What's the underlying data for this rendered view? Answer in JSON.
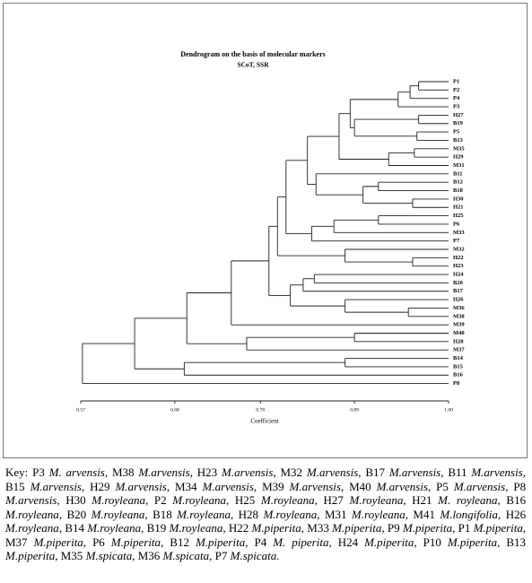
{
  "figure": {
    "title": "Dendrogram on the basis of molecular markers",
    "subtitle": "SCoT, SSR",
    "x_label": "Coefficient",
    "xlim": [
      0.57,
      1
    ],
    "xticks": [
      0.57,
      0.68,
      0.78,
      0.89,
      {
        "value": 1,
        "label": "1.00"
      }
    ],
    "tree": {
      "height": 0.572,
      "children": [
        {
          "height": 0.633,
          "children": [
            {
              "height": 0.694,
              "children": [
                {
                  "height": 0.746,
                  "children": [
                    {
                      "height": 0.79,
                      "children": [
                        {
                          "height": 0.8,
                          "children": [
                            {
                              "height": 0.81,
                              "children": [
                                {
                                  "height": 0.835,
                                  "children": [
                                    {
                                      "height": 0.872,
                                      "children": [
                                        {
                                          "height": 0.885,
                                          "children": [
                                            {
                                              "height": 0.941,
                                              "children": [
                                                {
                                                  "height": 0.955,
                                                  "children": [
                                                    {
                                                      "height": 0.965,
                                                      "children": [
                                                        {
                                                          "label": "P1"
                                                        },
                                                        {
                                                          "label": "P2"
                                                        }
                                                      ]
                                                    },
                                                    {
                                                      "label": "P4"
                                                    }
                                                  ]
                                                },
                                                {
                                                  "label": "P3"
                                                }
                                              ]
                                            },
                                            {
                                              "height": 0.89,
                                              "children": [
                                                {
                                                  "height": 0.965,
                                                  "children": [
                                                    {
                                                      "label": "H27"
                                                    },
                                                    {
                                                      "label": "B19"
                                                    }
                                                  ]
                                                },
                                                {
                                                  "height": 0.963,
                                                  "children": [
                                                    {
                                                      "label": "P5"
                                                    },
                                                    {
                                                      "label": "B13"
                                                    }
                                                  ]
                                                }
                                              ]
                                            }
                                          ]
                                        },
                                        {
                                          "height": 0.93,
                                          "children": [
                                            {
                                              "height": 0.96,
                                              "children": [
                                                {
                                                  "label": "M35"
                                                },
                                                {
                                                  "label": "H29"
                                                }
                                              ]
                                            },
                                            {
                                              "label": "M31"
                                            }
                                          ]
                                        }
                                      ]
                                    },
                                    {
                                      "height": 0.845,
                                      "children": [
                                        {
                                          "label": "B11"
                                        },
                                        {
                                          "height": 0.9,
                                          "children": [
                                            {
                                              "height": 0.918,
                                              "children": [
                                                {
                                                  "label": "B12"
                                                },
                                                {
                                                  "label": "B18"
                                                }
                                              ]
                                            },
                                            {
                                              "height": 0.958,
                                              "children": [
                                                {
                                                  "label": "H30"
                                                },
                                                {
                                                  "label": "H21"
                                                }
                                              ]
                                            }
                                          ]
                                        }
                                      ]
                                    }
                                  ]
                                },
                                {
                                  "height": 0.84,
                                  "children": [
                                    {
                                      "height": 0.866,
                                      "children": [
                                        {
                                          "height": 0.918,
                                          "children": [
                                            {
                                              "label": "H25"
                                            },
                                            {
                                              "label": "P6"
                                            }
                                          ]
                                        },
                                        {
                                          "label": "M33"
                                        }
                                      ]
                                    },
                                    {
                                      "label": "P7"
                                    }
                                  ]
                                }
                              ]
                            },
                            {
                              "height": 0.879,
                              "children": [
                                {
                                  "label": "M32"
                                },
                                {
                                  "height": 0.958,
                                  "children": [
                                    {
                                      "label": "H22"
                                    },
                                    {
                                      "label": "H23"
                                    }
                                  ]
                                }
                              ]
                            }
                          ]
                        },
                        {
                          "height": 0.815,
                          "children": [
                            {
                              "height": 0.83,
                              "children": [
                                {
                                  "height": 0.843,
                                  "children": [
                                    {
                                      "label": "H24"
                                    },
                                    {
                                      "label": "B20"
                                    }
                                  ]
                                },
                                {
                                  "label": "B17"
                                }
                              ]
                            },
                            {
                              "height": 0.879,
                              "children": [
                                {
                                  "label": "H26"
                                },
                                {
                                  "height": 0.953,
                                  "children": [
                                    {
                                      "label": "M36"
                                    },
                                    {
                                      "label": "M38"
                                    }
                                  ]
                                }
                              ]
                            }
                          ]
                        }
                      ]
                    },
                    {
                      "label": "M39"
                    }
                  ]
                },
                {
                  "height": 0.764,
                  "children": [
                    {
                      "height": 0.89,
                      "children": [
                        {
                          "label": "M40"
                        },
                        {
                          "label": "H28"
                        }
                      ]
                    },
                    {
                      "label": "M37"
                    }
                  ]
                }
              ]
            },
            {
              "height": 0.691,
              "children": [
                {
                  "height": 0.879,
                  "children": [
                    {
                      "label": "B14"
                    },
                    {
                      "label": "B15"
                    }
                  ]
                },
                {
                  "label": "B16"
                }
              ]
            }
          ]
        },
        {
          "label": "P8"
        }
      ]
    }
  },
  "caption": {
    "label": "Key:",
    "entries": [
      {
        "code": "P3",
        "species": "M. arvensis"
      },
      {
        "code": "M38",
        "species": "M.arvensis"
      },
      {
        "code": "H23",
        "species": "M.arvensis"
      },
      {
        "code": "M32",
        "species": "M.arvensis"
      },
      {
        "code": "B17",
        "species": "M.arvensis"
      },
      {
        "code": "B11",
        "species": "M.arvensis"
      },
      {
        "code": "B15",
        "species": "M.arvensis"
      },
      {
        "code": "H29",
        "species": "M.arvensis"
      },
      {
        "code": "M34",
        "species": "M.arvensis"
      },
      {
        "code": "M39",
        "species": "M.arvensis"
      },
      {
        "code": "M40",
        "species": "M.arvensis"
      },
      {
        "code": "P5",
        "species": "M.arvensis"
      },
      {
        "code": "P8",
        "species": "M.arvensis"
      },
      {
        "code": "H30",
        "species": "M.royleana"
      },
      {
        "code": "P2",
        "species": "M.royleana"
      },
      {
        "code": "H25",
        "species": "M.royleana"
      },
      {
        "code": "H27",
        "species": "M.royleana"
      },
      {
        "code": "H21",
        "species": "M. royleana"
      },
      {
        "code": "B16",
        "species": "M.royleana"
      },
      {
        "code": "B20",
        "species": "M.royleana"
      },
      {
        "code": "B18",
        "species": "M.royleana"
      },
      {
        "code": "H28",
        "species": "M.royleana"
      },
      {
        "code": "M31",
        "species": "M.royleana"
      },
      {
        "code": "M41",
        "species": "M.longifolia"
      },
      {
        "code": "H26",
        "species": "M.royleana"
      },
      {
        "code": "B14",
        "species": "M.royleana"
      },
      {
        "code": "B19",
        "species": "M.royleana"
      },
      {
        "code": "H22",
        "species": "M.piperita"
      },
      {
        "code": "M33",
        "species": "M.piperita"
      },
      {
        "code": "P9",
        "species": "M.piperita"
      },
      {
        "code": "P1",
        "species": "M.piperita"
      },
      {
        "code": "M37",
        "species": "M.piperita"
      },
      {
        "code": "P6",
        "species": "M.piperita"
      },
      {
        "code": "B12",
        "species": "M.piperita"
      },
      {
        "code": "P4",
        "species": "M. piperita"
      },
      {
        "code": "H24",
        "species": "M.piperita"
      },
      {
        "code": "P10",
        "species": "M.piperita"
      },
      {
        "code": "B13",
        "species": "M.piperita"
      },
      {
        "code": "M35",
        "species": "M.spicata"
      },
      {
        "code": "M36",
        "species": "M.spicata"
      },
      {
        "code": "P7",
        "species": "M.spicata.",
        "last": true
      }
    ]
  }
}
